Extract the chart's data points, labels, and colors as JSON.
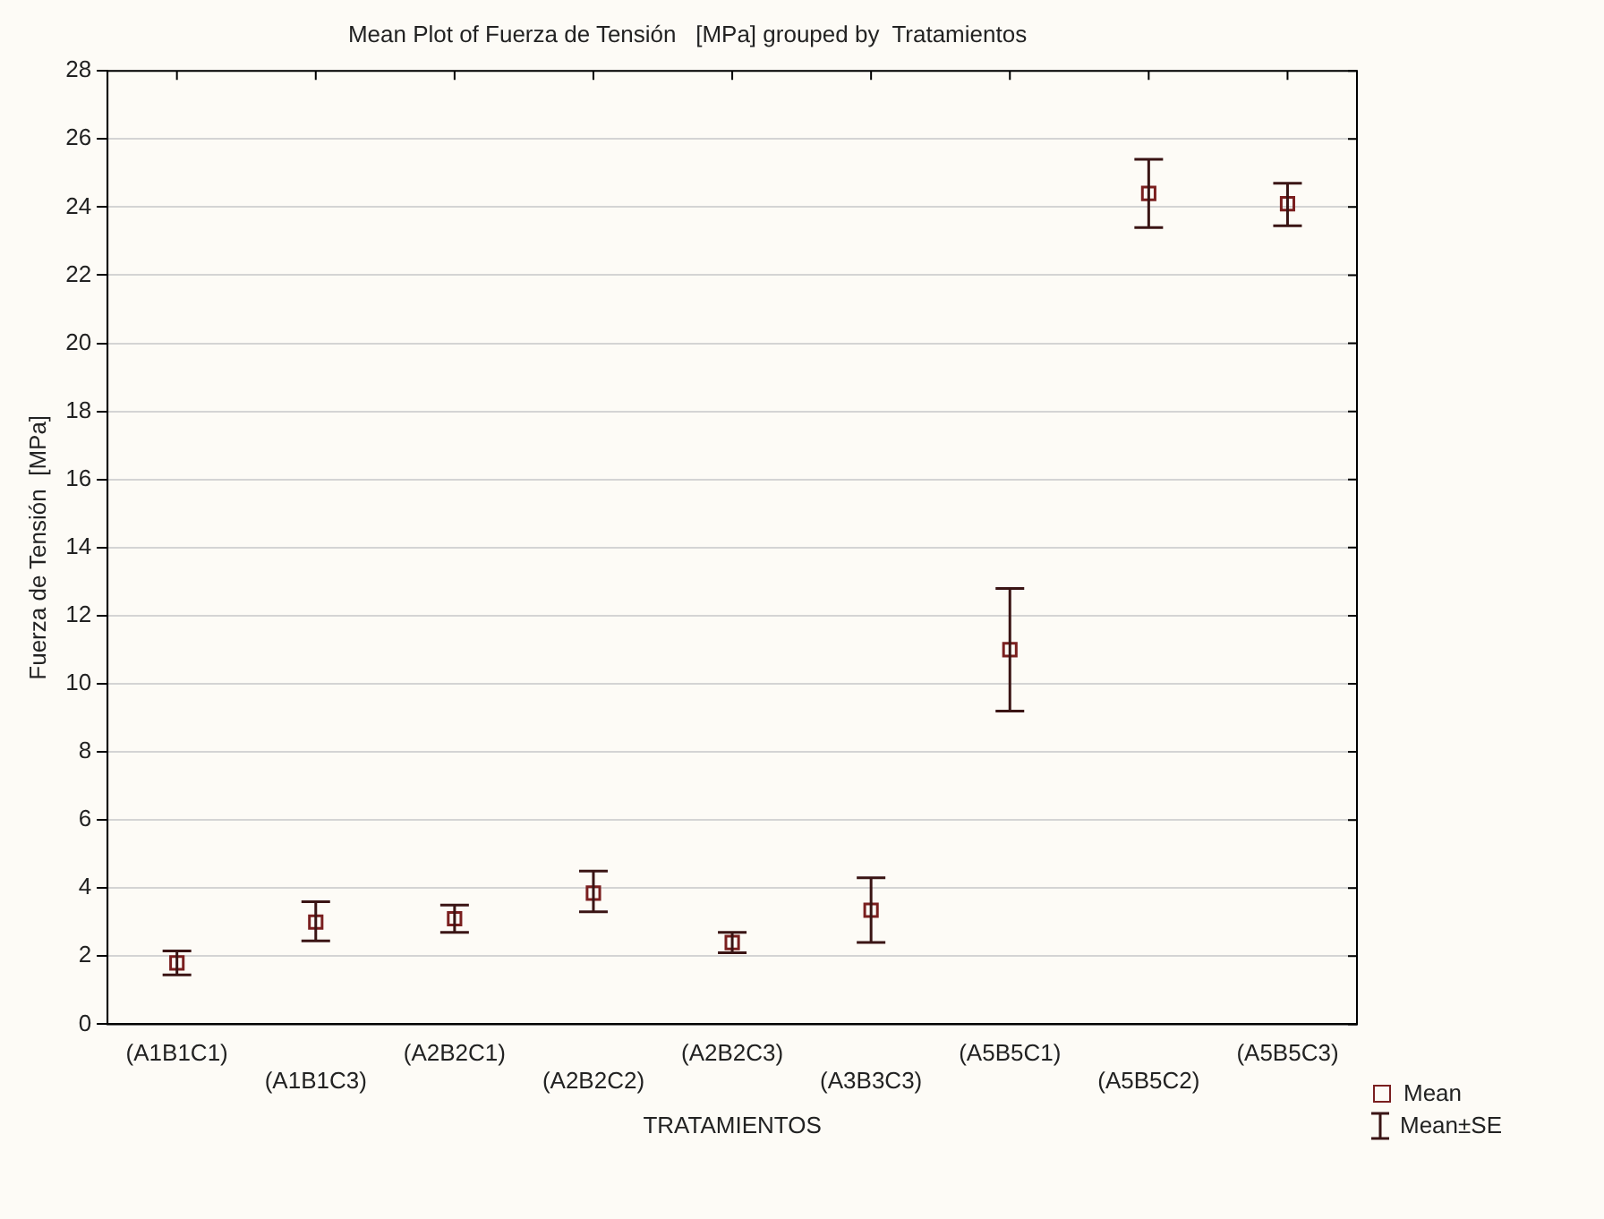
{
  "chart_data": {
    "type": "scatter",
    "title": "Mean Plot of Fuerza de Tensión   [MPa] grouped by  Tratamientos",
    "xlabel": "TRATAMIENTOS",
    "ylabel": "Fuerza de Tensión  [MPa]",
    "categories": [
      "(A1B1C1)",
      "(A1B1C3)",
      "(A2B2C1)",
      "(A2B2C2)",
      "(A2B2C3)",
      "(A3B3C3)",
      "(A5B5C1)",
      "(A5B5C2)",
      "(A5B5C3)"
    ],
    "series": [
      {
        "name": "Mean",
        "color": "#7a1f1f",
        "values": [
          1.8,
          3.0,
          3.1,
          3.85,
          2.4,
          3.35,
          11.0,
          24.4,
          24.1
        ],
        "errors": [
          [
            1.45,
            2.15
          ],
          [
            2.45,
            3.6
          ],
          [
            2.7,
            3.5
          ],
          [
            3.3,
            4.5
          ],
          [
            2.1,
            2.7
          ],
          [
            2.4,
            4.3
          ],
          [
            9.2,
            12.8
          ],
          [
            23.4,
            25.4
          ],
          [
            23.45,
            24.7
          ]
        ]
      }
    ],
    "annotations": [
      "Mean±SE"
    ],
    "ylim": [
      0,
      28
    ],
    "yticks": [
      0,
      2,
      4,
      6,
      8,
      10,
      12,
      14,
      16,
      18,
      20,
      22,
      24,
      26,
      28
    ],
    "grid": "y",
    "marker": "square",
    "legend": "bottom right"
  }
}
